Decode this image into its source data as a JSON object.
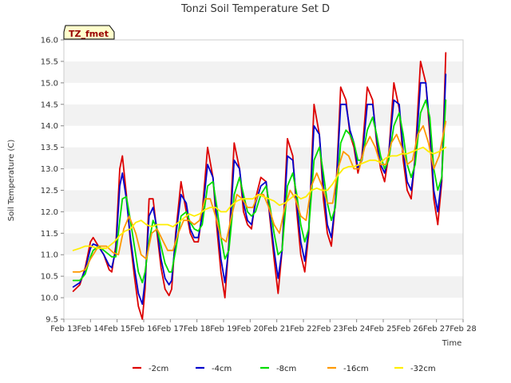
{
  "chart_data": {
    "type": "line",
    "title": "Tonzi Soil Temperature Set D",
    "xlabel": "Time",
    "ylabel": "Soil Temperature (C)",
    "badge": "TZ_fmet",
    "xlim": [
      13,
      28
    ],
    "ylim": [
      9.5,
      16.0
    ],
    "x_ticks": [
      13,
      14,
      15,
      16,
      17,
      18,
      19,
      20,
      21,
      22,
      23,
      24,
      25,
      26,
      27,
      28
    ],
    "x_tick_labels": [
      "Feb 13",
      "Feb 14",
      "Feb 15",
      "Feb 16",
      "Feb 17",
      "Feb 18",
      "Feb 19",
      "Feb 20",
      "Feb 21",
      "Feb 22",
      "Feb 23",
      "Feb 24",
      "Feb 25",
      "Feb 26",
      "Feb 27",
      "Feb 28"
    ],
    "y_ticks": [
      9.5,
      10.0,
      10.5,
      11.0,
      11.5,
      12.0,
      12.5,
      13.0,
      13.5,
      14.0,
      14.5,
      15.0,
      15.5,
      16.0
    ],
    "y_tick_labels": [
      "9.5",
      "10.0",
      "10.5",
      "11.0",
      "11.5",
      "12.0",
      "12.5",
      "13.0",
      "13.5",
      "14.0",
      "14.5",
      "15.0",
      "15.5",
      "16.0"
    ],
    "grid": "horizontal bands",
    "legend_position": "bottom",
    "series": [
      {
        "name": "-2cm",
        "color": "#dd0000",
        "x": [
          13.35,
          13.6,
          13.8,
          14.0,
          14.1,
          14.3,
          14.5,
          14.7,
          14.8,
          14.95,
          15.1,
          15.2,
          15.35,
          15.5,
          15.65,
          15.8,
          15.95,
          16.05,
          16.2,
          16.35,
          16.5,
          16.65,
          16.8,
          16.95,
          17.05,
          17.2,
          17.4,
          17.6,
          17.75,
          17.9,
          18.05,
          18.2,
          18.4,
          18.6,
          18.75,
          18.9,
          19.05,
          19.2,
          19.4,
          19.6,
          19.75,
          19.9,
          20.05,
          20.2,
          20.4,
          20.6,
          20.75,
          20.9,
          21.05,
          21.2,
          21.4,
          21.6,
          21.75,
          21.9,
          22.05,
          22.2,
          22.4,
          22.6,
          22.75,
          22.9,
          23.05,
          23.2,
          23.4,
          23.6,
          23.75,
          23.9,
          24.05,
          24.2,
          24.4,
          24.6,
          24.75,
          24.9,
          25.05,
          25.2,
          25.4,
          25.6,
          25.75,
          25.9,
          26.05,
          26.2,
          26.4,
          26.6,
          26.75,
          26.9,
          27.05,
          27.2,
          27.35
        ],
        "y": [
          10.15,
          10.3,
          10.7,
          11.3,
          11.4,
          11.2,
          11.0,
          10.65,
          10.6,
          11.2,
          13.0,
          13.3,
          12.4,
          11.3,
          10.5,
          9.8,
          9.5,
          10.2,
          12.3,
          12.3,
          11.5,
          10.7,
          10.2,
          10.05,
          10.2,
          11.5,
          12.7,
          12.0,
          11.5,
          11.3,
          11.3,
          12.0,
          13.5,
          12.8,
          11.6,
          10.6,
          10.0,
          11.3,
          13.6,
          13.0,
          12.0,
          11.7,
          11.6,
          12.3,
          12.8,
          12.7,
          11.8,
          10.9,
          10.1,
          11.1,
          13.7,
          13.3,
          12.0,
          11.0,
          10.6,
          11.5,
          14.5,
          13.8,
          12.3,
          11.5,
          11.2,
          12.2,
          14.9,
          14.6,
          13.8,
          13.5,
          12.9,
          13.3,
          14.9,
          14.6,
          13.6,
          13.0,
          12.7,
          13.3,
          15.0,
          14.4,
          13.2,
          12.5,
          12.3,
          13.3,
          15.5,
          15.0,
          13.8,
          12.3,
          11.7,
          12.7,
          15.7
        ]
      },
      {
        "name": "-4cm",
        "color": "#0000cc",
        "x": [
          13.35,
          13.6,
          13.8,
          14.0,
          14.1,
          14.3,
          14.5,
          14.7,
          14.8,
          14.95,
          15.1,
          15.2,
          15.35,
          15.5,
          15.65,
          15.8,
          15.95,
          16.05,
          16.2,
          16.35,
          16.5,
          16.65,
          16.8,
          16.95,
          17.05,
          17.2,
          17.4,
          17.6,
          17.75,
          17.9,
          18.05,
          18.2,
          18.4,
          18.6,
          18.75,
          18.9,
          19.05,
          19.2,
          19.4,
          19.6,
          19.75,
          19.9,
          20.05,
          20.2,
          20.4,
          20.6,
          20.75,
          20.9,
          21.05,
          21.2,
          21.4,
          21.6,
          21.75,
          21.9,
          22.05,
          22.2,
          22.4,
          22.6,
          22.75,
          22.9,
          23.05,
          23.2,
          23.4,
          23.6,
          23.75,
          23.9,
          24.05,
          24.2,
          24.4,
          24.6,
          24.75,
          24.9,
          25.05,
          25.2,
          25.4,
          25.6,
          25.75,
          25.9,
          26.05,
          26.2,
          26.4,
          26.6,
          26.75,
          26.9,
          27.05,
          27.2,
          27.35
        ],
        "y": [
          10.25,
          10.35,
          10.65,
          11.15,
          11.25,
          11.2,
          11.0,
          10.75,
          10.7,
          11.1,
          12.6,
          12.9,
          12.3,
          11.4,
          10.7,
          10.1,
          9.85,
          10.4,
          11.9,
          12.1,
          11.6,
          10.9,
          10.45,
          10.3,
          10.4,
          11.4,
          12.4,
          12.2,
          11.6,
          11.4,
          11.4,
          11.9,
          13.1,
          12.8,
          11.8,
          10.9,
          10.35,
          11.2,
          13.2,
          13.0,
          12.2,
          11.8,
          11.7,
          12.2,
          12.6,
          12.7,
          11.9,
          11.1,
          10.45,
          11.1,
          13.3,
          13.2,
          12.2,
          11.3,
          10.85,
          11.6,
          14.0,
          13.8,
          12.6,
          11.7,
          11.4,
          12.2,
          14.5,
          14.5,
          13.9,
          13.6,
          13.0,
          13.2,
          14.5,
          14.5,
          13.7,
          13.1,
          12.9,
          13.3,
          14.6,
          14.5,
          13.4,
          12.7,
          12.5,
          13.2,
          15.0,
          15.0,
          14.0,
          12.5,
          12.0,
          12.8,
          15.2
        ]
      },
      {
        "name": "-8cm",
        "color": "#00dd00",
        "x": [
          13.35,
          13.6,
          13.8,
          14.0,
          14.1,
          14.3,
          14.5,
          14.7,
          14.8,
          14.95,
          15.1,
          15.2,
          15.35,
          15.5,
          15.65,
          15.8,
          15.95,
          16.05,
          16.2,
          16.35,
          16.5,
          16.65,
          16.8,
          16.95,
          17.05,
          17.2,
          17.4,
          17.6,
          17.75,
          17.9,
          18.05,
          18.2,
          18.4,
          18.6,
          18.75,
          18.9,
          19.05,
          19.2,
          19.4,
          19.6,
          19.75,
          19.9,
          20.05,
          20.2,
          20.4,
          20.6,
          20.75,
          20.9,
          21.05,
          21.2,
          21.4,
          21.6,
          21.75,
          21.9,
          22.05,
          22.2,
          22.4,
          22.6,
          22.75,
          22.9,
          23.05,
          23.2,
          23.4,
          23.6,
          23.75,
          23.9,
          24.05,
          24.2,
          24.4,
          24.6,
          24.75,
          24.9,
          25.05,
          25.2,
          25.4,
          25.6,
          25.75,
          25.9,
          26.05,
          26.2,
          26.4,
          26.6,
          26.75,
          26.9,
          27.05,
          27.2,
          27.35
        ],
        "y": [
          10.4,
          10.4,
          10.55,
          10.95,
          11.1,
          11.2,
          11.1,
          11.0,
          10.95,
          10.95,
          11.8,
          12.3,
          12.35,
          11.8,
          11.2,
          10.6,
          10.35,
          10.6,
          11.3,
          11.8,
          11.6,
          11.2,
          10.8,
          10.6,
          10.6,
          11.1,
          11.9,
          12.0,
          11.75,
          11.6,
          11.55,
          11.7,
          12.6,
          12.7,
          12.1,
          11.4,
          10.9,
          11.1,
          12.4,
          12.8,
          12.4,
          12.0,
          11.9,
          12.0,
          12.4,
          12.6,
          12.1,
          11.5,
          11.0,
          11.1,
          12.6,
          12.9,
          12.4,
          11.7,
          11.3,
          11.6,
          13.2,
          13.5,
          12.9,
          12.2,
          11.8,
          12.1,
          13.6,
          13.9,
          13.8,
          13.6,
          13.2,
          13.2,
          13.9,
          14.2,
          13.8,
          13.3,
          13.0,
          13.2,
          14.0,
          14.3,
          13.8,
          13.1,
          12.8,
          13.1,
          14.3,
          14.6,
          14.2,
          13.0,
          12.5,
          12.8,
          14.6
        ]
      },
      {
        "name": "-16cm",
        "color": "#ff9900",
        "x": [
          13.35,
          13.6,
          13.8,
          14.0,
          14.3,
          14.6,
          14.85,
          15.05,
          15.25,
          15.45,
          15.7,
          15.9,
          16.1,
          16.3,
          16.5,
          16.7,
          16.9,
          17.1,
          17.3,
          17.5,
          17.7,
          17.9,
          18.1,
          18.3,
          18.5,
          18.7,
          18.9,
          19.1,
          19.3,
          19.5,
          19.7,
          19.9,
          20.1,
          20.3,
          20.5,
          20.7,
          20.9,
          21.1,
          21.3,
          21.5,
          21.7,
          21.9,
          22.1,
          22.3,
          22.5,
          22.7,
          22.9,
          23.1,
          23.3,
          23.5,
          23.7,
          23.9,
          24.1,
          24.3,
          24.5,
          24.7,
          24.9,
          25.1,
          25.3,
          25.5,
          25.7,
          25.9,
          26.1,
          26.3,
          26.5,
          26.7,
          26.9,
          27.1,
          27.35
        ],
        "y": [
          10.6,
          10.6,
          10.65,
          10.9,
          11.2,
          11.2,
          11.05,
          11.0,
          11.6,
          11.9,
          11.5,
          11.0,
          10.9,
          11.5,
          11.6,
          11.35,
          11.1,
          11.1,
          11.5,
          11.8,
          11.8,
          11.7,
          11.8,
          12.3,
          12.3,
          11.9,
          11.4,
          11.3,
          11.9,
          12.4,
          12.3,
          12.1,
          12.1,
          12.4,
          12.4,
          12.1,
          11.7,
          11.5,
          12.1,
          12.5,
          12.3,
          11.9,
          11.8,
          12.6,
          12.9,
          12.6,
          12.2,
          12.2,
          13.0,
          13.4,
          13.3,
          13.0,
          13.0,
          13.5,
          13.75,
          13.5,
          13.1,
          13.1,
          13.6,
          13.8,
          13.5,
          13.1,
          13.2,
          13.8,
          14.0,
          13.6,
          13.0,
          13.3,
          14.1
        ]
      },
      {
        "name": "-32cm",
        "color": "#ffee00",
        "x": [
          13.35,
          13.6,
          13.8,
          14.0,
          14.3,
          14.6,
          14.9,
          15.1,
          15.3,
          15.5,
          15.7,
          15.9,
          16.1,
          16.3,
          16.5,
          16.7,
          16.9,
          17.1,
          17.3,
          17.5,
          17.7,
          17.9,
          18.1,
          18.3,
          18.5,
          18.7,
          18.9,
          19.1,
          19.3,
          19.5,
          19.7,
          19.9,
          20.1,
          20.3,
          20.5,
          20.7,
          20.9,
          21.1,
          21.3,
          21.5,
          21.7,
          21.9,
          22.1,
          22.3,
          22.5,
          22.7,
          22.9,
          23.1,
          23.3,
          23.5,
          23.7,
          23.9,
          24.1,
          24.3,
          24.5,
          24.7,
          24.9,
          25.1,
          25.3,
          25.5,
          25.7,
          25.9,
          26.1,
          26.3,
          26.5,
          26.7,
          26.9,
          27.1,
          27.35
        ],
        "y": [
          11.1,
          11.15,
          11.2,
          11.2,
          11.15,
          11.15,
          11.3,
          11.45,
          11.55,
          11.6,
          11.75,
          11.8,
          11.7,
          11.65,
          11.7,
          11.7,
          11.7,
          11.65,
          11.75,
          11.85,
          11.95,
          11.9,
          11.95,
          12.05,
          12.1,
          12.1,
          12.0,
          12.0,
          12.15,
          12.25,
          12.3,
          12.3,
          12.3,
          12.4,
          12.35,
          12.3,
          12.25,
          12.15,
          12.2,
          12.3,
          12.4,
          12.3,
          12.35,
          12.5,
          12.55,
          12.5,
          12.5,
          12.65,
          12.85,
          13.0,
          13.05,
          13.05,
          13.1,
          13.15,
          13.2,
          13.2,
          13.15,
          13.25,
          13.3,
          13.3,
          13.35,
          13.35,
          13.4,
          13.45,
          13.5,
          13.4,
          13.35,
          13.4,
          13.5
        ]
      }
    ]
  }
}
